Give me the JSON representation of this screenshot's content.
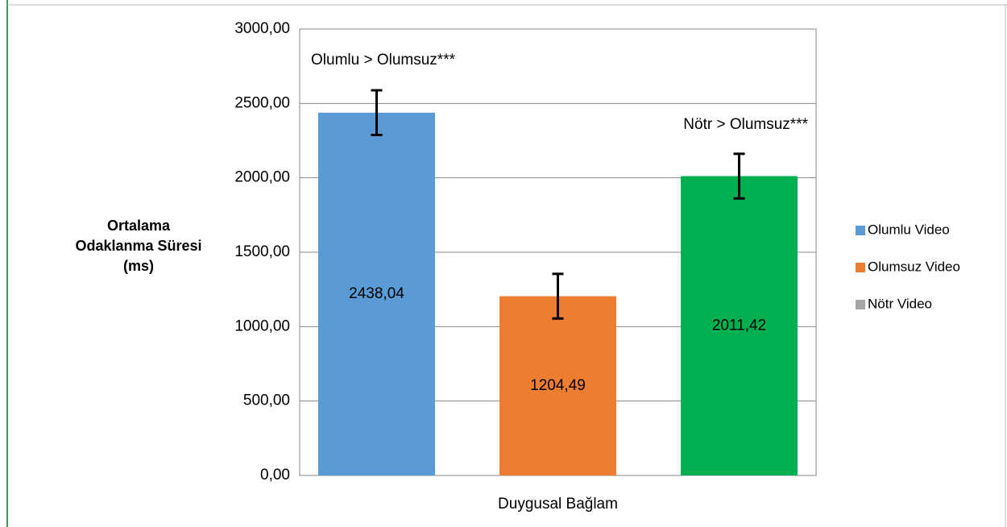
{
  "chart_data": {
    "type": "bar",
    "y_label": "Ortalama Odaklanma Süresi (ms)",
    "categories": [
      "Duygusal Bağlam"
    ],
    "series": [
      {
        "name": "Olumlu Video",
        "color": "#5b9bd5",
        "legend_color": "#5b9bd5",
        "values": [
          2438.04
        ],
        "value_labels": [
          "2438,04"
        ],
        "errors": [
          150
        ]
      },
      {
        "name": "Olumsuz Video",
        "color": "#ed7d31",
        "legend_color": "#ed7d31",
        "values": [
          1204.49
        ],
        "value_labels": [
          "1204,49"
        ],
        "errors": [
          150
        ]
      },
      {
        "name": "Nötr Video",
        "color": "#00b050",
        "legend_color": "#a5a5a5",
        "values": [
          2011.42
        ],
        "value_labels": [
          "2011,42"
        ],
        "errors": [
          150
        ]
      }
    ],
    "annotations": [
      "Olumlu > Olumsuz***",
      "Nötr > Olumsuz***"
    ],
    "ylim": [
      0,
      3000
    ],
    "yticks": [
      {
        "value": 0,
        "label": "0,00"
      },
      {
        "value": 500,
        "label": "500,00"
      },
      {
        "value": 1000,
        "label": "1000,00"
      },
      {
        "value": 1500,
        "label": "1500,00"
      },
      {
        "value": 2000,
        "label": "2000,00"
      },
      {
        "value": 2500,
        "label": "2500,00"
      },
      {
        "value": 3000,
        "label": "3000,00"
      }
    ],
    "grid": true,
    "legend": "right"
  }
}
